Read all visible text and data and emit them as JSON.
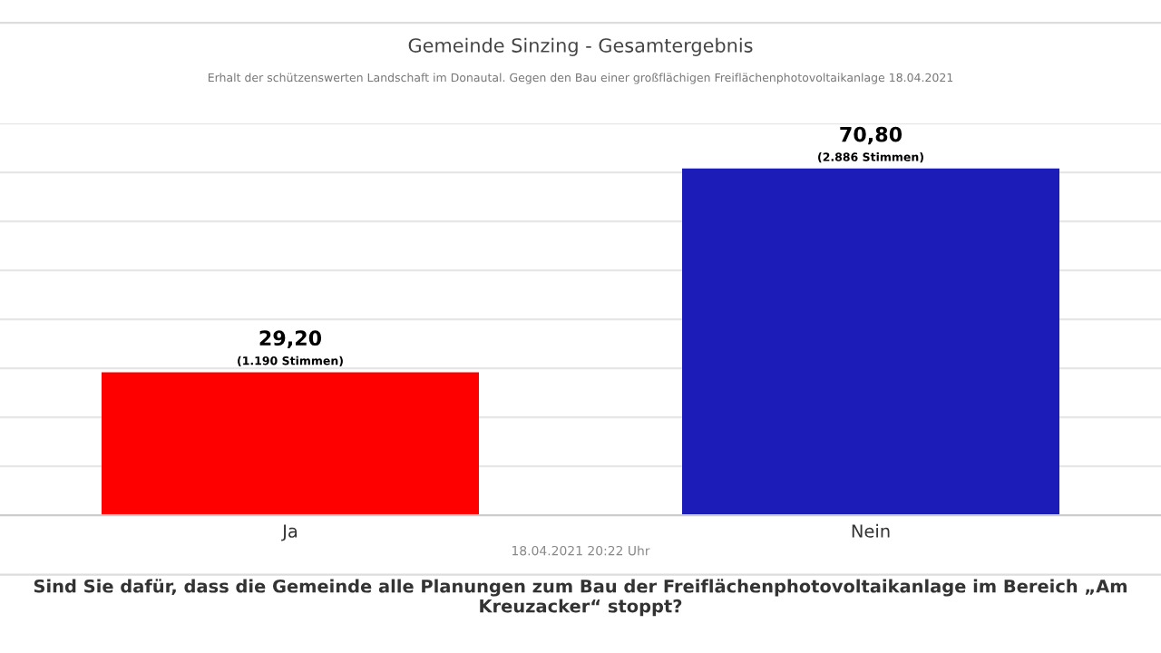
{
  "chart_data": {
    "type": "bar",
    "title": "Gemeinde Sinzing - Gesamtergebnis",
    "subtitle": "Erhalt der schützenswerten Landschaft im Donautal. Gegen den Bau einer großflächigen Freiflächenphotovoltaikanlage 18.04.2021",
    "categories": [
      "Ja",
      "Nein"
    ],
    "values": [
      29.2,
      70.8
    ],
    "colors": [
      "#ff0000",
      "#1c1cb8"
    ],
    "value_labels": [
      "29,20",
      "70,80"
    ],
    "ylim": [
      0,
      80
    ],
    "yticks": [
      {
        "value": 0,
        "label": null
      },
      {
        "value": 10,
        "label": null
      },
      {
        "value": 20,
        "label": null
      },
      {
        "value": 30,
        "label": null
      },
      {
        "value": 40,
        "label": null
      },
      {
        "value": 50,
        "label": null
      },
      {
        "value": 60,
        "label": null
      },
      {
        "value": 70,
        "label": null
      },
      {
        "value": 80,
        "label": null
      }
    ],
    "grid": "y",
    "tick_labels": "x",
    "legend": false,
    "annotations": [
      {
        "text": "(1.190 Stimmen)",
        "x": "Ja",
        "y": 29.2
      },
      {
        "text": "(2.886 Stimmen)",
        "x": "Nein",
        "y": 70.8
      },
      "18.04.2021 20:22 Uhr",
      "Sind Sie dafür, dass die Gemeinde alle Planungen zum Bau der Freiflächenphotovoltaikanlage im Bereich „Am Kreuzacker“ stoppt?"
    ]
  }
}
